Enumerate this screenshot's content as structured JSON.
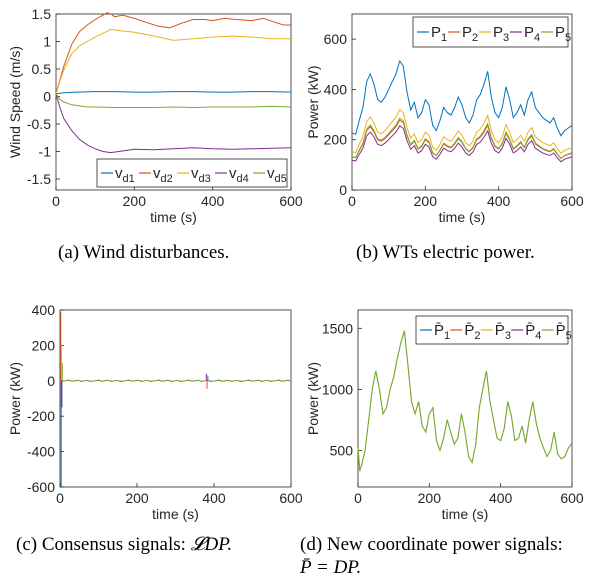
{
  "chart_data": [
    {
      "type": "line",
      "caption": "(a) Wind disturbances.",
      "xlabel": "time (s)",
      "ylabel": "Wind Speed (m/s)",
      "xlim": [
        0,
        600
      ],
      "ylim": [
        -1.7,
        1.5
      ],
      "xticks": [
        "0",
        "200",
        "400",
        "600"
      ],
      "yticks": [
        "-1.5",
        "-1",
        "-0.5",
        "0",
        "0.5",
        "1",
        "1.5"
      ],
      "legend_position": "bottom-right",
      "legend_columns": 5,
      "series": [
        {
          "name": "v",
          "sub": "d1",
          "color": "#0072BD",
          "x": [
            0,
            10,
            20,
            50,
            100,
            150,
            200,
            250,
            300,
            350,
            400,
            450,
            500,
            550,
            600
          ],
          "y": [
            0.05,
            0.06,
            0.07,
            0.08,
            0.09,
            0.09,
            0.08,
            0.08,
            0.09,
            0.09,
            0.08,
            0.08,
            0.09,
            0.09,
            0.08
          ]
        },
        {
          "name": "v",
          "sub": "d2",
          "color": "#D95319",
          "x": [
            0,
            10,
            20,
            40,
            60,
            80,
            100,
            120,
            130,
            140,
            150,
            170,
            200,
            230,
            260,
            290,
            320,
            350,
            380,
            400,
            430,
            460,
            500,
            530,
            560,
            580,
            600
          ],
          "y": [
            0.05,
            0.3,
            0.55,
            0.95,
            1.18,
            1.3,
            1.4,
            1.48,
            1.52,
            1.5,
            1.45,
            1.48,
            1.42,
            1.35,
            1.28,
            1.25,
            1.33,
            1.4,
            1.4,
            1.38,
            1.42,
            1.4,
            1.38,
            1.42,
            1.35,
            1.3,
            1.3
          ]
        },
        {
          "name": "v",
          "sub": "d3",
          "color": "#EDB120",
          "x": [
            0,
            10,
            20,
            40,
            60,
            80,
            100,
            120,
            140,
            160,
            200,
            250,
            300,
            350,
            400,
            450,
            500,
            550,
            600
          ],
          "y": [
            0.05,
            0.28,
            0.48,
            0.78,
            0.92,
            1.0,
            1.08,
            1.15,
            1.22,
            1.2,
            1.17,
            1.1,
            1.02,
            1.05,
            1.08,
            1.1,
            1.08,
            1.05,
            1.05
          ]
        },
        {
          "name": "v",
          "sub": "d4",
          "color": "#7E2F8E",
          "x": [
            0,
            10,
            20,
            40,
            60,
            80,
            100,
            120,
            140,
            160,
            200,
            250,
            300,
            350,
            400,
            450,
            500,
            550,
            600
          ],
          "y": [
            0.05,
            -0.2,
            -0.4,
            -0.62,
            -0.78,
            -0.88,
            -0.95,
            -1.0,
            -1.02,
            -1.0,
            -0.96,
            -0.97,
            -0.95,
            -0.93,
            -0.95,
            -0.96,
            -0.95,
            -0.94,
            -0.93
          ]
        },
        {
          "name": "v",
          "sub": "d5",
          "color": "#77AC30",
          "x": [
            0,
            10,
            20,
            40,
            60,
            80,
            100,
            150,
            200,
            250,
            300,
            350,
            400,
            450,
            500,
            550,
            600
          ],
          "y": [
            0.05,
            -0.05,
            -0.1,
            -0.15,
            -0.17,
            -0.19,
            -0.19,
            -0.2,
            -0.2,
            -0.2,
            -0.19,
            -0.2,
            -0.19,
            -0.19,
            -0.19,
            -0.18,
            -0.19
          ]
        }
      ]
    },
    {
      "type": "line",
      "caption": "(b) WTs electric power.",
      "xlabel": "time (s)",
      "ylabel": "Power (kW)",
      "xlim": [
        0,
        600
      ],
      "ylim": [
        0,
        700
      ],
      "xticks": [
        "0",
        "200",
        "400",
        "600"
      ],
      "yticks": [
        "0",
        "200",
        "400",
        "600"
      ],
      "legend_position": "top",
      "legend_columns": 5,
      "x": [
        0,
        10,
        20,
        30,
        40,
        50,
        60,
        70,
        80,
        90,
        100,
        110,
        120,
        130,
        140,
        150,
        160,
        170,
        180,
        190,
        200,
        210,
        220,
        230,
        240,
        250,
        260,
        270,
        280,
        290,
        300,
        310,
        320,
        330,
        340,
        350,
        360,
        370,
        380,
        390,
        400,
        410,
        420,
        430,
        440,
        450,
        460,
        470,
        480,
        490,
        500,
        510,
        520,
        530,
        540,
        550,
        560,
        570,
        580,
        590,
        600
      ],
      "base": [
        120,
        118,
        145,
        170,
        220,
        235,
        215,
        185,
        180,
        190,
        205,
        220,
        235,
        260,
        250,
        200,
        165,
        180,
        150,
        160,
        185,
        175,
        135,
        125,
        145,
        170,
        160,
        155,
        170,
        190,
        175,
        150,
        140,
        155,
        185,
        195,
        215,
        240,
        190,
        160,
        150,
        170,
        210,
        185,
        150,
        160,
        175,
        155,
        185,
        200,
        170,
        160,
        150,
        145,
        140,
        150,
        130,
        115,
        125,
        130,
        135
      ],
      "series": [
        {
          "name": "P",
          "sub": "1",
          "color": "#0072BD",
          "scale": 2.05,
          "offset": -20
        },
        {
          "name": "P",
          "sub": "2",
          "color": "#D95319",
          "scale": 1.05,
          "offset": 5
        },
        {
          "name": "P",
          "sub": "3",
          "color": "#EDB120",
          "scale": 1.2,
          "offset": 8
        },
        {
          "name": "P",
          "sub": "4",
          "color": "#7E2F8E",
          "scale": 0.98,
          "offset": 0
        },
        {
          "name": "P",
          "sub": "5",
          "color": "#77AC30",
          "scale": 1.1,
          "offset": 0
        }
      ]
    },
    {
      "type": "line",
      "caption_prefix": "(c) Consensus signals: ",
      "caption_math": "𝓛DP.",
      "xlabel": "time (s)",
      "ylabel": "Power (kW)",
      "xlim": [
        0,
        600
      ],
      "ylim": [
        -600,
        400
      ],
      "xticks": [
        "0",
        "200",
        "400",
        "600"
      ],
      "yticks": [
        "-600",
        "-400",
        "-200",
        "0",
        "200",
        "400"
      ],
      "spikes": [
        {
          "x": 2,
          "y": 390,
          "color": "#D95319"
        },
        {
          "x": 3,
          "y": -600,
          "color": "#0072BD"
        },
        {
          "x": 4,
          "y": 210,
          "color": "#EDB120"
        },
        {
          "x": 5,
          "y": -150,
          "color": "#7E2F8E"
        },
        {
          "x": 6,
          "y": 100,
          "color": "#77AC30"
        },
        {
          "x": 380,
          "y": 40,
          "color": "#7E2F8E"
        },
        {
          "x": 382,
          "y": -45,
          "color": "#D95319"
        },
        {
          "x": 384,
          "y": 30,
          "color": "#0072BD"
        }
      ],
      "colors": [
        "#0072BD",
        "#D95319",
        "#EDB120",
        "#7E2F8E",
        "#77AC30"
      ]
    },
    {
      "type": "line",
      "caption_line1": "(d) New coordinate power signals:",
      "caption_line2_math": "P̄ = DP.",
      "xlabel": "time (s)",
      "ylabel": "Power (kW)",
      "xlim": [
        0,
        600
      ],
      "ylim": [
        200,
        1650
      ],
      "xticks": [
        "0",
        "200",
        "400",
        "600"
      ],
      "yticks": [
        "500",
        "1000",
        "1500"
      ],
      "legend_position": "top-right",
      "legend_columns": 5,
      "x": [
        0,
        5,
        10,
        20,
        30,
        40,
        50,
        60,
        70,
        80,
        90,
        100,
        110,
        120,
        130,
        140,
        150,
        160,
        170,
        180,
        190,
        200,
        210,
        220,
        230,
        240,
        250,
        260,
        270,
        280,
        290,
        300,
        310,
        320,
        330,
        340,
        350,
        360,
        370,
        380,
        390,
        400,
        410,
        420,
        430,
        440,
        450,
        460,
        470,
        480,
        490,
        500,
        510,
        520,
        530,
        540,
        550,
        560,
        570,
        580,
        590,
        600
      ],
      "y": [
        520,
        330,
        380,
        500,
        750,
        1000,
        1150,
        1000,
        800,
        850,
        1000,
        1100,
        1250,
        1380,
        1480,
        1200,
        900,
        800,
        900,
        700,
        650,
        800,
        850,
        580,
        500,
        600,
        750,
        650,
        550,
        600,
        800,
        650,
        450,
        400,
        550,
        850,
        1000,
        1150,
        900,
        750,
        600,
        580,
        680,
        900,
        780,
        580,
        600,
        700,
        560,
        750,
        900,
        720,
        600,
        520,
        450,
        500,
        650,
        470,
        430,
        450,
        520,
        560
      ],
      "series_names": [
        "P̄",
        "P̄",
        "P̄",
        "P̄",
        "P̄"
      ],
      "series_subs": [
        "1",
        "2",
        "3",
        "4",
        "5"
      ],
      "colors": [
        "#0072BD",
        "#D95319",
        "#EDB120",
        "#7E2F8E",
        "#77AC30"
      ]
    }
  ]
}
